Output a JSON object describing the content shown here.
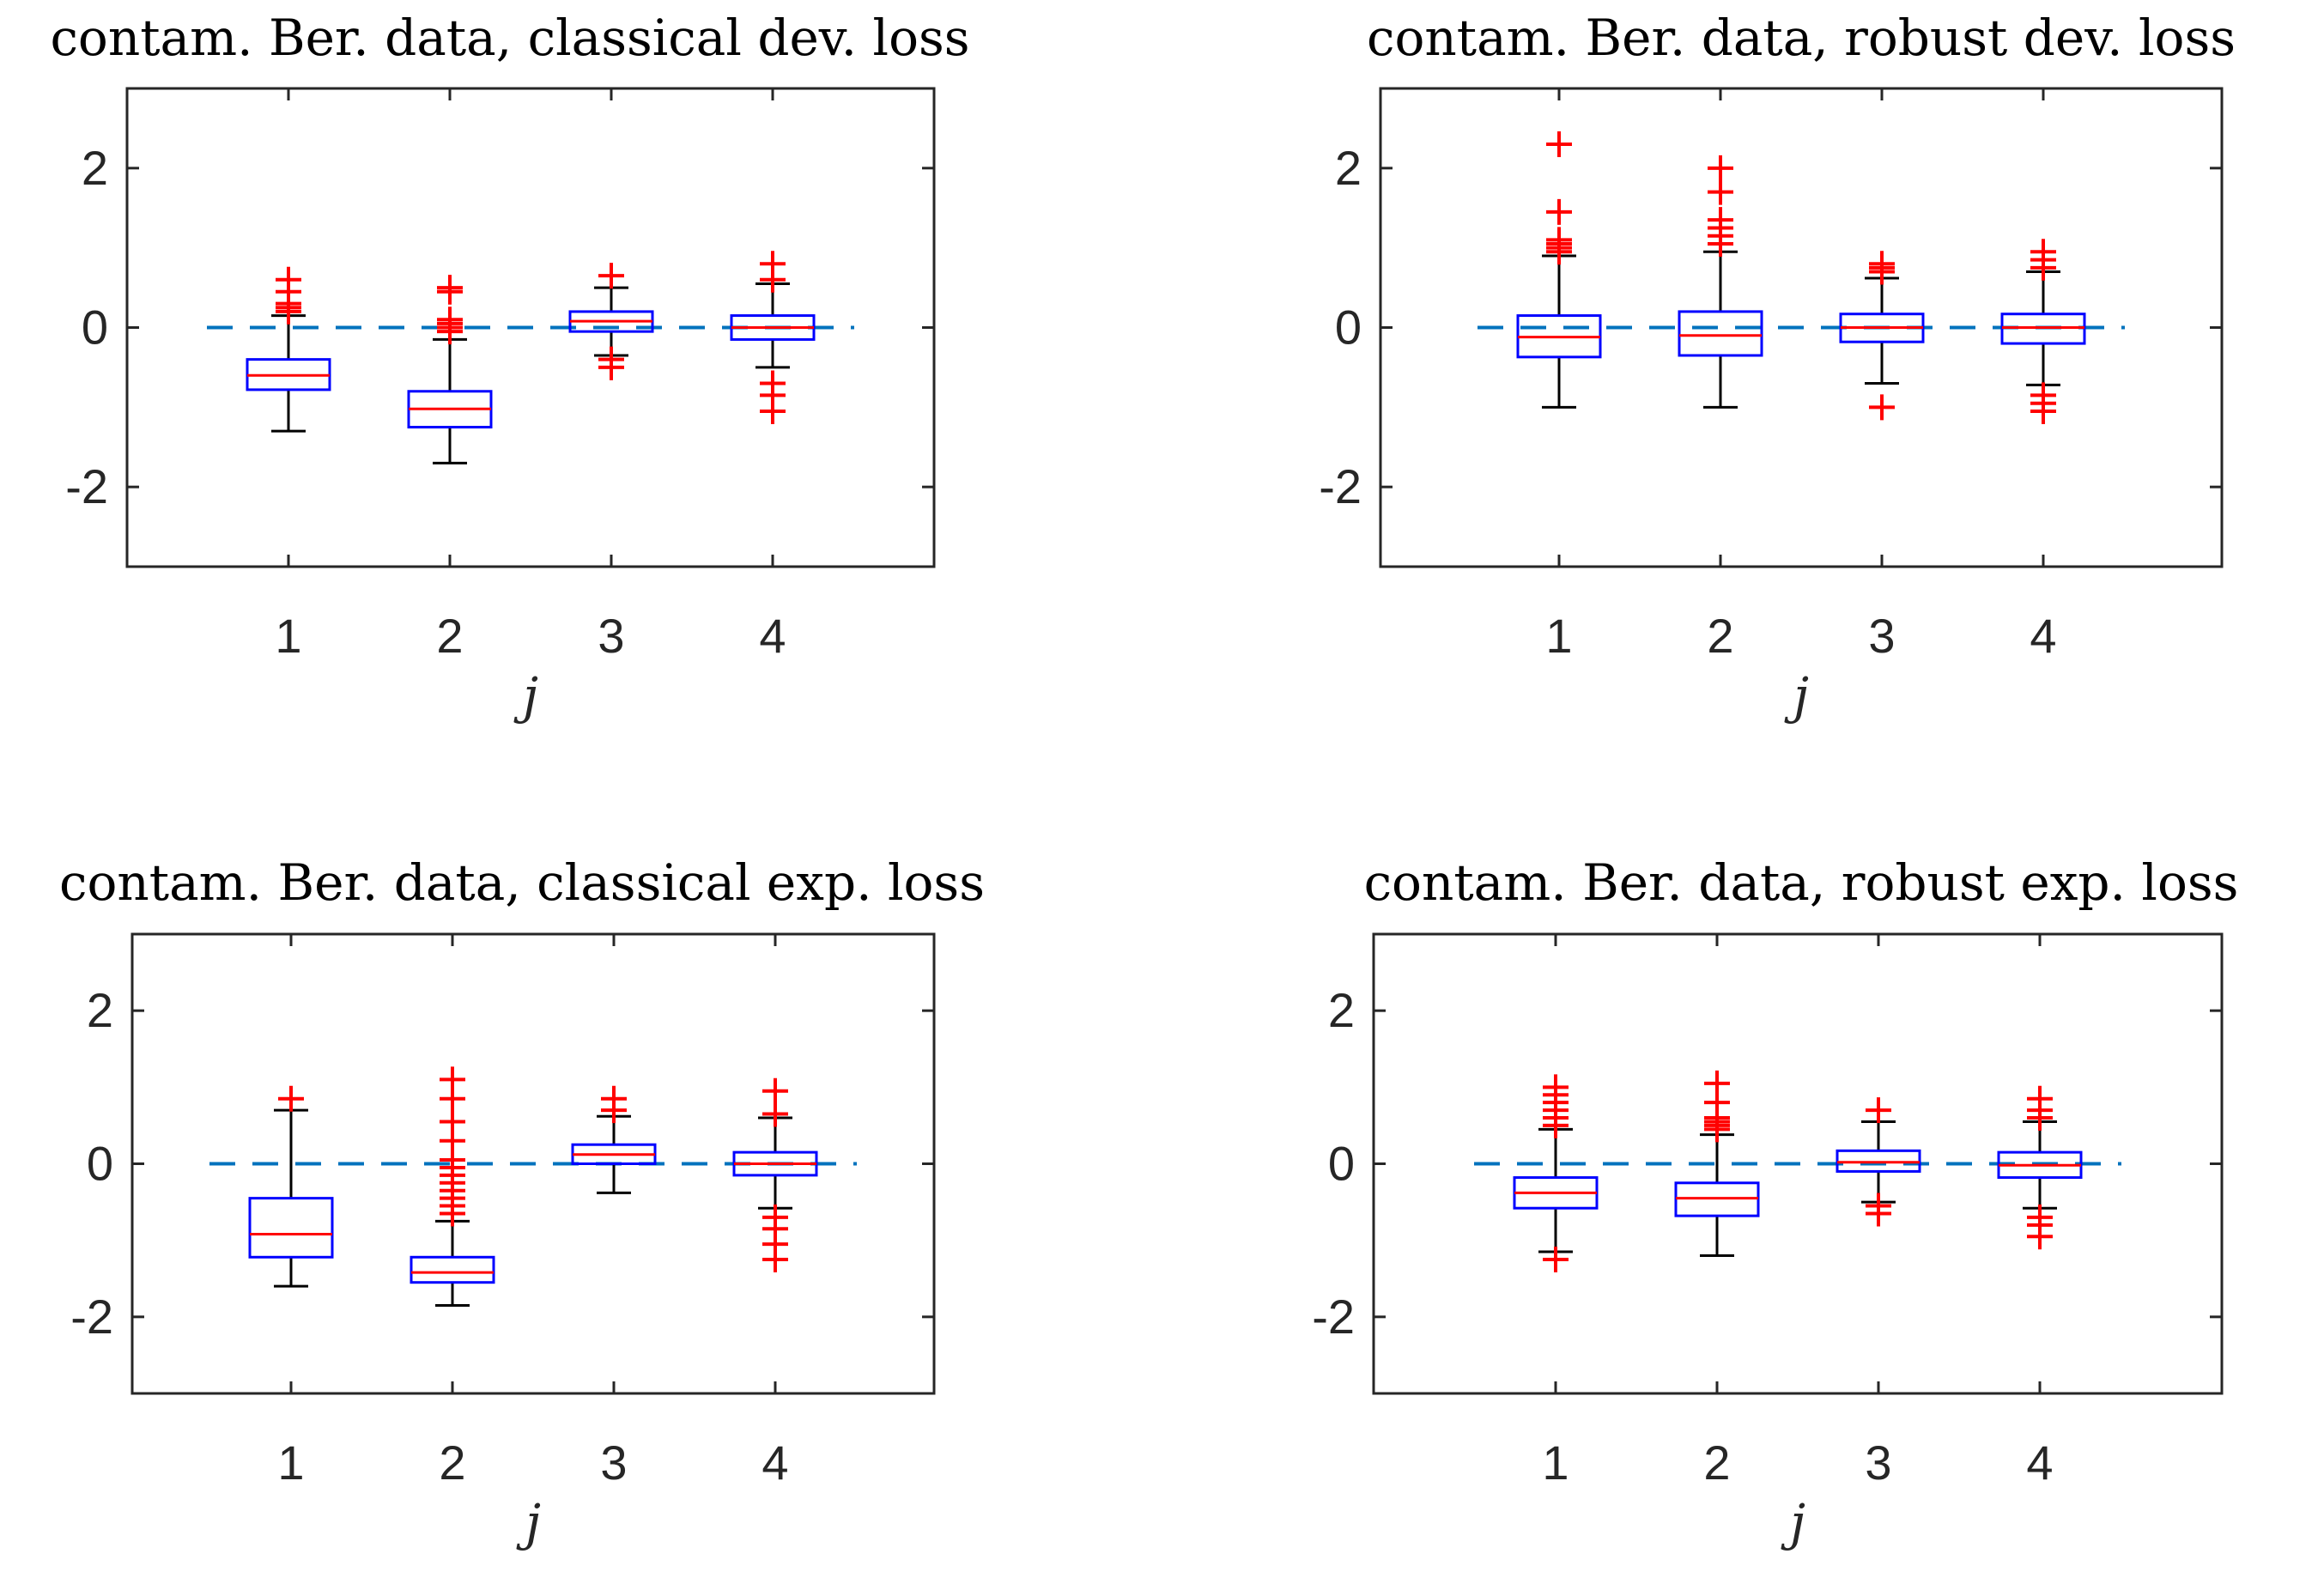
{
  "colors": {
    "box": "#0000ff",
    "median": "#ff0000",
    "outlier": "#ff0000",
    "whisker": "#000000",
    "reference": "#0072bd",
    "axis": "#262626"
  },
  "chart_data": [
    {
      "type": "box",
      "title": "contam. Ber. data, classical dev. loss",
      "xlabel": "j",
      "ylabel": "",
      "categories": [
        "1",
        "2",
        "3",
        "4"
      ],
      "ylim": [
        -3,
        3
      ],
      "yticks": [
        -2,
        0,
        2
      ],
      "ytick_labels": [
        "-2",
        "0",
        "2"
      ],
      "reference_line": 0,
      "boxes": [
        {
          "q1": -0.78,
          "median": -0.6,
          "q3": -0.4,
          "whisker_low": -1.3,
          "whisker_high": 0.15,
          "outliers": [
            0.2,
            0.25,
            0.3,
            0.45,
            0.6
          ]
        },
        {
          "q1": -1.25,
          "median": -1.02,
          "q3": -0.8,
          "whisker_low": -1.7,
          "whisker_high": -0.15,
          "outliers": [
            -0.05,
            0.0,
            0.05,
            0.1,
            0.45,
            0.5
          ]
        },
        {
          "q1": -0.05,
          "median": 0.08,
          "q3": 0.2,
          "whisker_low": -0.35,
          "whisker_high": 0.5,
          "outliers": [
            -0.4,
            -0.5,
            0.65
          ]
        },
        {
          "q1": -0.15,
          "median": 0.0,
          "q3": 0.15,
          "whisker_low": -0.5,
          "whisker_high": 0.55,
          "outliers": [
            -0.7,
            -0.85,
            -1.05,
            0.6,
            0.8
          ]
        }
      ]
    },
    {
      "type": "box",
      "title": "contam. Ber. data, robust dev. loss",
      "xlabel": "j",
      "ylabel": "",
      "categories": [
        "1",
        "2",
        "3",
        "4"
      ],
      "ylim": [
        -3,
        3
      ],
      "yticks": [
        -2,
        0,
        2
      ],
      "ytick_labels": [
        "-2",
        "0",
        "2"
      ],
      "reference_line": 0,
      "boxes": [
        {
          "q1": -0.37,
          "median": -0.12,
          "q3": 0.15,
          "whisker_low": -1.0,
          "whisker_high": 0.9,
          "outliers": [
            0.95,
            1.0,
            1.05,
            1.1,
            1.45,
            2.3
          ]
        },
        {
          "q1": -0.35,
          "median": -0.1,
          "q3": 0.2,
          "whisker_low": -1.0,
          "whisker_high": 0.95,
          "outliers": [
            1.05,
            1.15,
            1.25,
            1.35,
            1.7,
            2.0
          ]
        },
        {
          "q1": -0.18,
          "median": 0.0,
          "q3": 0.17,
          "whisker_low": -0.7,
          "whisker_high": 0.62,
          "outliers": [
            -1.0,
            0.7,
            0.75,
            0.8
          ]
        },
        {
          "q1": -0.2,
          "median": 0.0,
          "q3": 0.17,
          "whisker_low": -0.72,
          "whisker_high": 0.7,
          "outliers": [
            -0.85,
            -0.95,
            -1.05,
            0.75,
            0.85,
            0.95
          ]
        }
      ]
    },
    {
      "type": "box",
      "title": "contam. Ber. data, classical exp. loss",
      "xlabel": "j",
      "ylabel": "",
      "categories": [
        "1",
        "2",
        "3",
        "4"
      ],
      "ylim": [
        -3,
        3
      ],
      "yticks": [
        -2,
        0,
        2
      ],
      "ytick_labels": [
        "-2",
        "0",
        "2"
      ],
      "reference_line": 0,
      "boxes": [
        {
          "q1": -1.22,
          "median": -0.92,
          "q3": -0.45,
          "whisker_low": -1.6,
          "whisker_high": 0.7,
          "outliers": [
            0.85
          ]
        },
        {
          "q1": -1.55,
          "median": -1.42,
          "q3": -1.22,
          "whisker_low": -1.85,
          "whisker_high": -0.75,
          "outliers": [
            -0.65,
            -0.55,
            -0.45,
            -0.35,
            -0.25,
            -0.15,
            -0.05,
            0.05,
            0.3,
            0.55,
            0.85,
            1.1
          ]
        },
        {
          "q1": 0.0,
          "median": 0.12,
          "q3": 0.25,
          "whisker_low": -0.38,
          "whisker_high": 0.62,
          "outliers": [
            0.7,
            0.85
          ]
        },
        {
          "q1": -0.15,
          "median": 0.0,
          "q3": 0.15,
          "whisker_low": -0.58,
          "whisker_high": 0.6,
          "outliers": [
            -0.7,
            -0.85,
            -1.05,
            -1.25,
            0.65,
            0.95
          ]
        }
      ]
    },
    {
      "type": "box",
      "title": "contam. Ber. data, robust exp. loss",
      "xlabel": "j",
      "ylabel": "",
      "categories": [
        "1",
        "2",
        "3",
        "4"
      ],
      "ylim": [
        -3,
        3
      ],
      "yticks": [
        -2,
        0,
        2
      ],
      "ytick_labels": [
        "-2",
        "0",
        "2"
      ],
      "reference_line": 0,
      "boxes": [
        {
          "q1": -0.58,
          "median": -0.38,
          "q3": -0.18,
          "whisker_low": -1.15,
          "whisker_high": 0.45,
          "outliers": [
            -1.25,
            0.5,
            0.6,
            0.7,
            0.8,
            0.9,
            1.0
          ]
        },
        {
          "q1": -0.68,
          "median": -0.45,
          "q3": -0.25,
          "whisker_low": -1.2,
          "whisker_high": 0.38,
          "outliers": [
            0.45,
            0.5,
            0.55,
            0.6,
            0.8,
            1.05
          ]
        },
        {
          "q1": -0.1,
          "median": 0.02,
          "q3": 0.17,
          "whisker_low": -0.5,
          "whisker_high": 0.55,
          "outliers": [
            -0.55,
            -0.65,
            0.7
          ]
        },
        {
          "q1": -0.18,
          "median": -0.02,
          "q3": 0.15,
          "whisker_low": -0.58,
          "whisker_high": 0.55,
          "outliers": [
            -0.7,
            -0.8,
            -0.95,
            0.6,
            0.7,
            0.85
          ]
        }
      ]
    }
  ]
}
